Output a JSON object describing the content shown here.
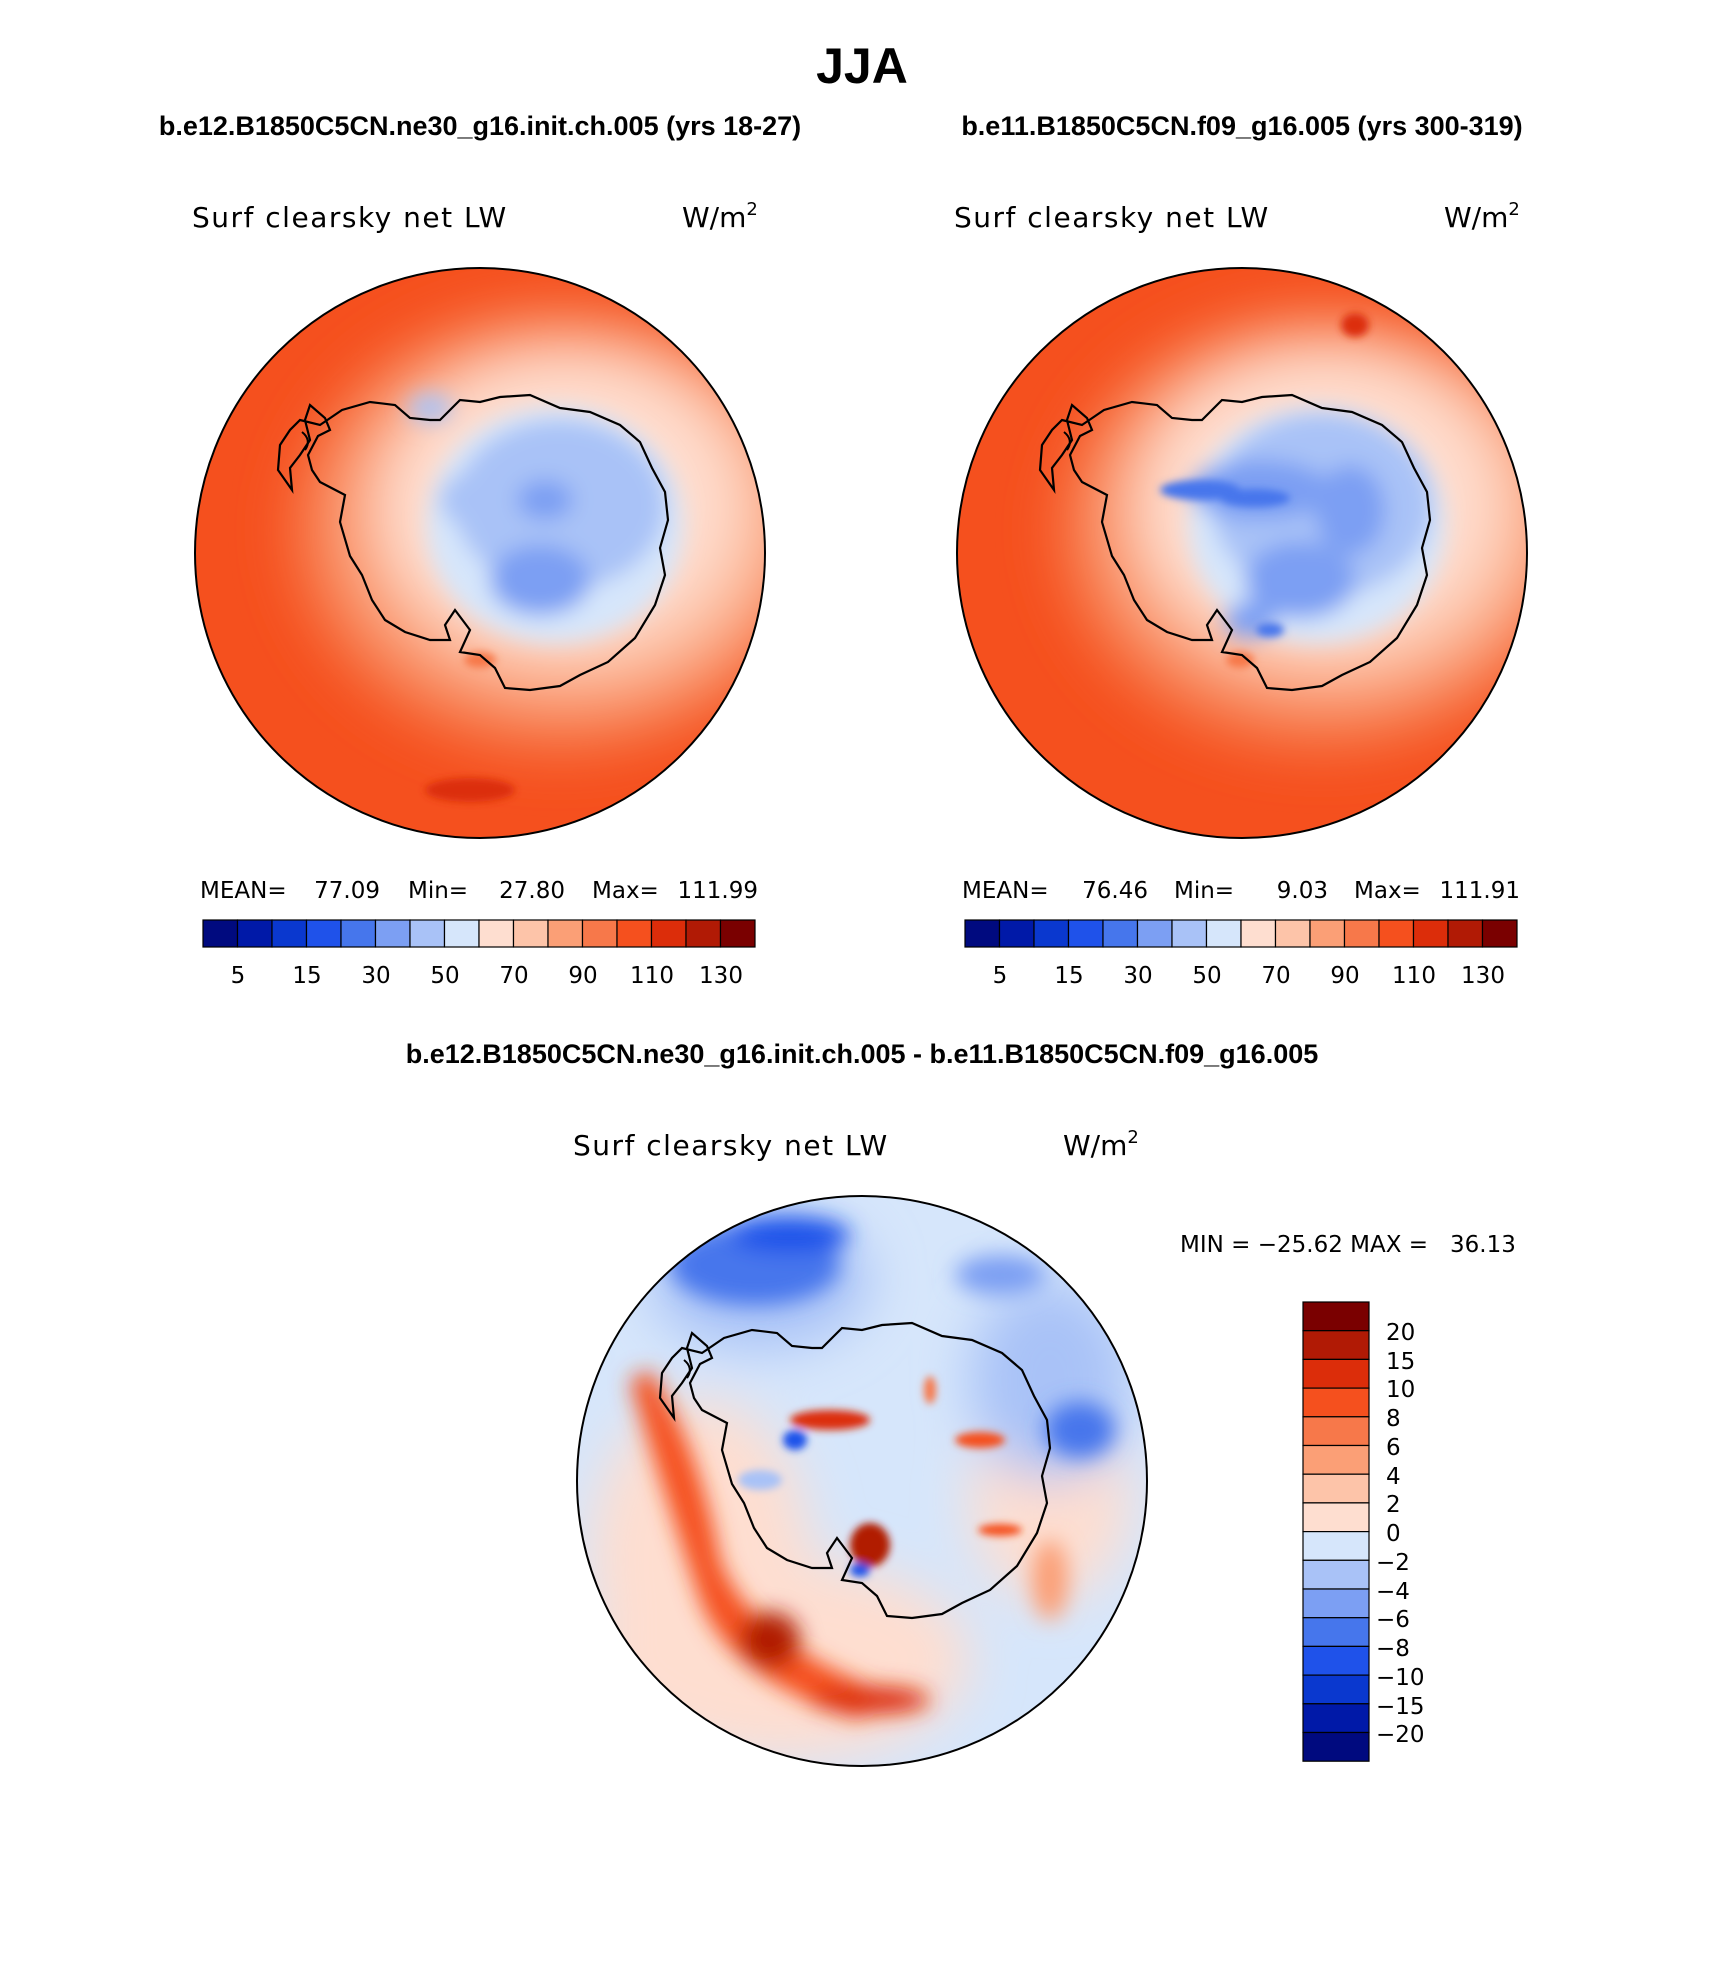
{
  "title": "JJA",
  "colors": {
    "abs_scale": [
      "#000a7f",
      "#0019a8",
      "#0a38cf",
      "#1f52ea",
      "#4676ec",
      "#7c9ff3",
      "#a9c2f7",
      "#d6e6fb",
      "#feded0",
      "#fdc4a9",
      "#fb9f76",
      "#f7784a",
      "#f5501e",
      "#dc2d0a",
      "#b11a05",
      "#7a0000"
    ],
    "diff_scale": [
      "#000a7f",
      "#0019a8",
      "#0a38cf",
      "#1f52ea",
      "#4676ec",
      "#7c9ff3",
      "#a9c2f7",
      "#d6e6fb",
      "#feded0",
      "#fdc4a9",
      "#fb9f76",
      "#f7784a",
      "#f5501e",
      "#dc2d0a",
      "#b11a05",
      "#7a0000"
    ],
    "coast": "#000000"
  },
  "panels": [
    {
      "case": "b.e12.B1850C5CN.ne30_g16.init.ch.005 (yrs 18-27)",
      "variable": "Surf clearsky net LW",
      "units": "W/m",
      "units_sup": "2",
      "stats": {
        "mean_label": "MEAN=",
        "mean": "77.09",
        "min_label": "Min=",
        "min": "27.80",
        "max_label": "Max=",
        "max": "111.99"
      },
      "colorbar_ticks": [
        "5",
        "15",
        "30",
        "50",
        "70",
        "90",
        "110",
        "130"
      ]
    },
    {
      "case": "b.e11.B1850C5CN.f09_g16.005 (yrs 300-319)",
      "variable": "Surf clearsky net LW",
      "units": "W/m",
      "units_sup": "2",
      "stats": {
        "mean_label": "MEAN=",
        "mean": "76.46",
        "min_label": "Min=",
        "min": "9.03",
        "max_label": "Max=",
        "max": "111.91"
      },
      "colorbar_ticks": [
        "5",
        "15",
        "30",
        "50",
        "70",
        "90",
        "110",
        "130"
      ]
    }
  ],
  "difference": {
    "title": "b.e12.B1850C5CN.ne30_g16.init.ch.005 - b.e11.B1850C5CN.f09_g16.005",
    "variable": "Surf clearsky net LW",
    "units": "W/m",
    "units_sup": "2",
    "minmax": "MIN = −25.62 MAX =   36.13",
    "colorbar_ticks": [
      "20",
      "15",
      "10",
      "8",
      "6",
      "4",
      "2",
      "0",
      "−2",
      "−4",
      "−6",
      "−8",
      "−10",
      "−15",
      "−20"
    ]
  }
}
